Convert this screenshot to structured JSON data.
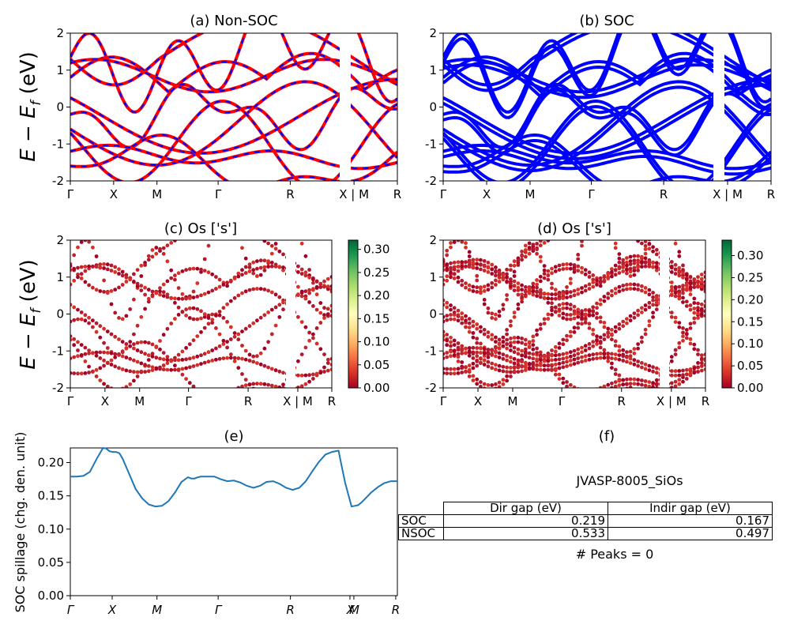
{
  "ylabel_energy": "E − E",
  "ylabel_energy_sub": "f",
  "ylabel_energy_unit": " (eV)",
  "kpath_labels": [
    "Γ",
    "X",
    "M",
    "Γ",
    "R",
    "X | M",
    "R"
  ],
  "chart_data": [
    {
      "id": "a",
      "type": "line",
      "title": "(a) Non-SOC",
      "ylim": [
        -2,
        2
      ],
      "yticks": [
        -2,
        -1,
        0,
        1,
        2
      ],
      "series_colors": [
        "#ff0000",
        "#0000ff"
      ],
      "dashed_overlay": true
    },
    {
      "id": "b",
      "type": "line",
      "title": "(b) SOC",
      "ylim": [
        -2,
        2
      ],
      "yticks": [
        -2,
        -1,
        0,
        1,
        2
      ],
      "series_colors": [
        "#0000ff"
      ]
    },
    {
      "id": "c",
      "type": "scatter",
      "title": "(c)  Os ['s']",
      "ylim": [
        -2,
        2
      ],
      "yticks": [
        -2,
        -1,
        0,
        1,
        2
      ],
      "colorbar": {
        "min": 0.0,
        "max": 0.32,
        "ticks": [
          "0.00",
          "0.05",
          "0.10",
          "0.15",
          "0.20",
          "0.25",
          "0.30"
        ],
        "cmap": "RdYlGn"
      }
    },
    {
      "id": "d",
      "type": "scatter",
      "title": "(d) Os ['s']",
      "ylim": [
        -2,
        2
      ],
      "yticks": [
        -2,
        -1,
        0,
        1,
        2
      ],
      "colorbar": {
        "min": 0.0,
        "max": 0.335,
        "ticks": [
          "0.00",
          "0.05",
          "0.10",
          "0.15",
          "0.20",
          "0.25",
          "0.30"
        ],
        "cmap": "RdYlGn"
      }
    },
    {
      "id": "e",
      "type": "line",
      "title": "(e)",
      "ylabel": "SOC spillage (chg. den. unit)",
      "ylim": [
        0,
        0.222
      ],
      "yticks": [
        "0.00",
        "0.05",
        "0.10",
        "0.15",
        "0.20"
      ],
      "xtick_labels": [
        "Γ",
        "X",
        "M",
        "Γ",
        "R",
        "X",
        "M",
        "R"
      ],
      "color": "#1f77b4",
      "x": [
        0,
        0.02,
        0.04,
        0.06,
        0.08,
        0.1,
        0.11,
        0.12,
        0.13,
        0.14,
        0.15,
        0.16,
        0.18,
        0.2,
        0.22,
        0.24,
        0.26,
        0.28,
        0.3,
        0.32,
        0.34,
        0.36,
        0.37,
        0.38,
        0.39,
        0.4,
        0.42,
        0.44,
        0.46,
        0.48,
        0.5,
        0.52,
        0.54,
        0.56,
        0.58,
        0.6,
        0.62,
        0.64,
        0.66,
        0.68,
        0.7,
        0.72,
        0.74,
        0.76,
        0.78,
        0.8,
        0.82,
        0.84,
        0.86,
        0.87,
        0.88,
        0.89,
        0.9,
        0.92,
        0.94,
        0.96,
        0.98,
        1.0
      ],
      "y": [
        0.179,
        0.179,
        0.18,
        0.186,
        0.205,
        0.222,
        0.221,
        0.217,
        0.216,
        0.216,
        0.214,
        0.206,
        0.183,
        0.16,
        0.146,
        0.137,
        0.134,
        0.135,
        0.142,
        0.155,
        0.171,
        0.178,
        0.176,
        0.176,
        0.178,
        0.179,
        0.179,
        0.179,
        0.175,
        0.172,
        0.173,
        0.17,
        0.165,
        0.162,
        0.165,
        0.171,
        0.172,
        0.168,
        0.162,
        0.159,
        0.162,
        0.172,
        0.187,
        0.201,
        0.212,
        0.216,
        0.218,
        0.17,
        0.134,
        0.135,
        0.136,
        0.14,
        0.145,
        0.155,
        0.163,
        0.169,
        0.172,
        0.172
      ]
    }
  ],
  "panel_f": {
    "title": "(f)",
    "material": "JVASP-8005_SiOs",
    "table": {
      "headers": [
        "",
        "Dir gap (eV)",
        "Indir gap (eV)"
      ],
      "rows": [
        {
          "label": "SOC",
          "dir": "0.219",
          "indir": "0.167"
        },
        {
          "label": "NSOC",
          "dir": "0.533",
          "indir": "0.497"
        }
      ]
    },
    "peaks": "# Peaks = 0"
  }
}
